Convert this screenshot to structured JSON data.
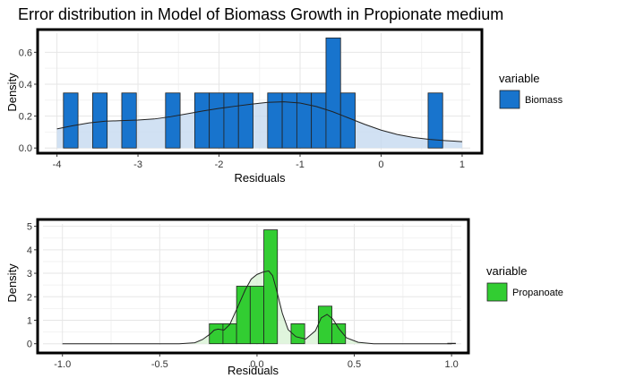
{
  "title": "Error distribution in Model of Biomass Growth in Propionate medium",
  "chart_data": [
    {
      "type": "histogram",
      "xlabel": "Residuals",
      "ylabel": "Density",
      "xlim": [
        -4.15,
        1.1
      ],
      "ylim": [
        -0.01,
        0.72
      ],
      "xticks": [
        -4,
        -3,
        -2,
        -1,
        0,
        1
      ],
      "yticks": [
        0.0,
        0.2,
        0.4,
        0.6
      ],
      "ytick_labels": [
        "0.0",
        "0.2",
        "0.4",
        "0.6"
      ],
      "legend": {
        "title": "variable",
        "label": "Biomass",
        "position": "right"
      },
      "bar_color": "#1874cd",
      "density_fill": "#c6d9f0",
      "bins": [
        {
          "x0": -3.92,
          "x1": -3.74,
          "density": 0.345
        },
        {
          "x0": -3.56,
          "x1": -3.38,
          "density": 0.345
        },
        {
          "x0": -3.2,
          "x1": -3.02,
          "density": 0.345
        },
        {
          "x0": -2.66,
          "x1": -2.48,
          "density": 0.345
        },
        {
          "x0": -2.3,
          "x1": -2.12,
          "density": 0.345
        },
        {
          "x0": -2.12,
          "x1": -1.94,
          "density": 0.345
        },
        {
          "x0": -1.94,
          "x1": -1.76,
          "density": 0.345
        },
        {
          "x0": -1.76,
          "x1": -1.58,
          "density": 0.345
        },
        {
          "x0": -1.4,
          "x1": -1.22,
          "density": 0.345
        },
        {
          "x0": -1.22,
          "x1": -1.04,
          "density": 0.345
        },
        {
          "x0": -1.04,
          "x1": -0.86,
          "density": 0.345
        },
        {
          "x0": -0.86,
          "x1": -0.68,
          "density": 0.345
        },
        {
          "x0": -0.68,
          "x1": -0.5,
          "density": 0.69
        },
        {
          "x0": -0.5,
          "x1": -0.32,
          "density": 0.345
        },
        {
          "x0": 0.58,
          "x1": 0.76,
          "density": 0.345
        }
      ],
      "density_curve": [
        [
          -4.0,
          0.12
        ],
        [
          -3.8,
          0.14
        ],
        [
          -3.6,
          0.158
        ],
        [
          -3.4,
          0.168
        ],
        [
          -3.2,
          0.172
        ],
        [
          -3.0,
          0.175
        ],
        [
          -2.8,
          0.182
        ],
        [
          -2.6,
          0.196
        ],
        [
          -2.4,
          0.214
        ],
        [
          -2.2,
          0.232
        ],
        [
          -2.0,
          0.248
        ],
        [
          -1.8,
          0.262
        ],
        [
          -1.6,
          0.275
        ],
        [
          -1.4,
          0.286
        ],
        [
          -1.2,
          0.29
        ],
        [
          -1.0,
          0.282
        ],
        [
          -0.8,
          0.26
        ],
        [
          -0.6,
          0.228
        ],
        [
          -0.4,
          0.188
        ],
        [
          -0.2,
          0.148
        ],
        [
          0.0,
          0.112
        ],
        [
          0.2,
          0.085
        ],
        [
          0.4,
          0.066
        ],
        [
          0.6,
          0.054
        ],
        [
          0.8,
          0.046
        ],
        [
          1.0,
          0.04
        ]
      ]
    },
    {
      "type": "histogram",
      "xlabel": "Residuals",
      "ylabel": "Density",
      "xlim": [
        -1.1,
        1.05
      ],
      "ylim": [
        -0.05,
        5.1
      ],
      "xticks": [
        -1.0,
        -0.5,
        0.0,
        0.5,
        1.0
      ],
      "xtick_labels": [
        "-1.0",
        "-0.5",
        "0.0",
        "0.5",
        "1.0"
      ],
      "yticks": [
        0,
        1,
        2,
        3,
        4,
        5
      ],
      "ytick_labels": [
        "0",
        "1",
        "2",
        "3",
        "4",
        "5"
      ],
      "legend": {
        "title": "variable",
        "label": "Propanoate",
        "position": "right"
      },
      "bar_color": "#32cd32",
      "density_fill": "#d8f2d4",
      "bins": [
        {
          "x0": -0.245,
          "x1": -0.175,
          "density": 0.85
        },
        {
          "x0": -0.175,
          "x1": -0.105,
          "density": 0.85
        },
        {
          "x0": -0.105,
          "x1": -0.035,
          "density": 2.45
        },
        {
          "x0": -0.035,
          "x1": 0.035,
          "density": 2.45
        },
        {
          "x0": 0.035,
          "x1": 0.105,
          "density": 4.85
        },
        {
          "x0": 0.175,
          "x1": 0.245,
          "density": 0.85
        },
        {
          "x0": 0.315,
          "x1": 0.385,
          "density": 1.6
        },
        {
          "x0": 0.385,
          "x1": 0.455,
          "density": 0.85
        },
        {
          "x0": 0.98,
          "x1": 1.02,
          "density": 0.02
        }
      ],
      "density_curve": [
        [
          -1.0,
          0.0
        ],
        [
          -0.4,
          0.0
        ],
        [
          -0.32,
          0.04
        ],
        [
          -0.28,
          0.18
        ],
        [
          -0.24,
          0.42
        ],
        [
          -0.22,
          0.58
        ],
        [
          -0.2,
          0.62
        ],
        [
          -0.17,
          0.58
        ],
        [
          -0.14,
          0.82
        ],
        [
          -0.1,
          1.55
        ],
        [
          -0.06,
          2.3
        ],
        [
          -0.03,
          2.75
        ],
        [
          0.0,
          2.95
        ],
        [
          0.03,
          3.05
        ],
        [
          0.06,
          3.1
        ],
        [
          0.08,
          2.9
        ],
        [
          0.1,
          2.3
        ],
        [
          0.13,
          1.3
        ],
        [
          0.16,
          0.6
        ],
        [
          0.2,
          0.3
        ],
        [
          0.25,
          0.2
        ],
        [
          0.3,
          0.55
        ],
        [
          0.33,
          1.1
        ],
        [
          0.36,
          1.25
        ],
        [
          0.39,
          1.05
        ],
        [
          0.42,
          0.65
        ],
        [
          0.46,
          0.25
        ],
        [
          0.52,
          0.06
        ],
        [
          0.6,
          0.0
        ],
        [
          1.0,
          0.0
        ]
      ]
    }
  ]
}
